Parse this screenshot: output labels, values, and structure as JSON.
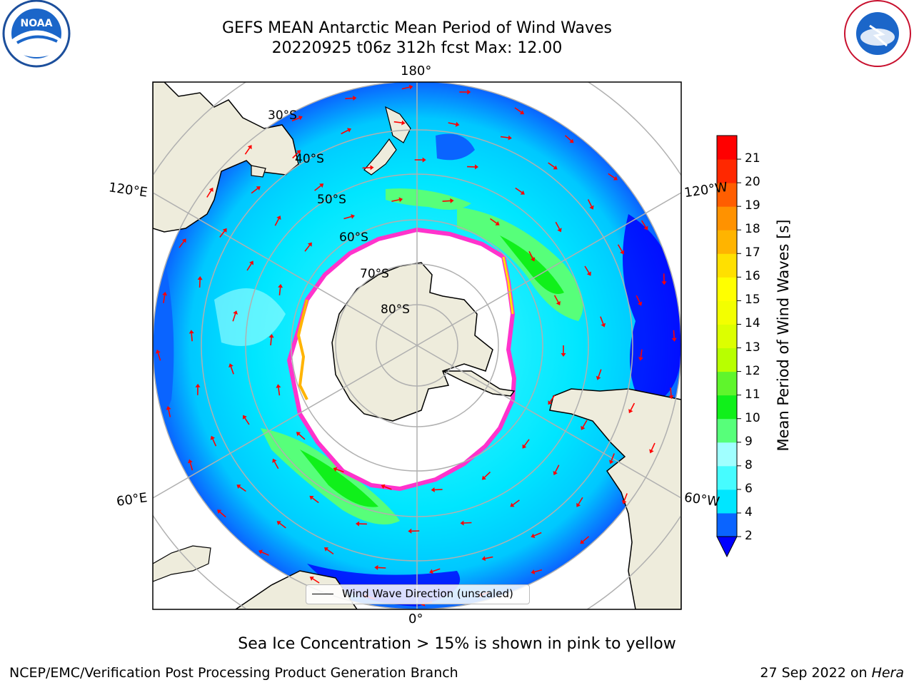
{
  "title": {
    "line1": "GEFS MEAN Antarctic Mean Period of Wind Waves",
    "line2": "20220925 t06z 312h fcst   Max: 12.00"
  },
  "logos": {
    "left": "NOAA",
    "right": "NATIONAL WEATHER SERVICE"
  },
  "map": {
    "projection": "south-polar-stereographic",
    "longitude_labels": {
      "top": "180°",
      "bottom": "0°",
      "left_upper": "120°E",
      "left_lower": "60°E",
      "right_upper": "120°W",
      "right_lower": "60°W"
    },
    "latitude_labels": [
      "30°S",
      "40°S",
      "50°S",
      "60°S",
      "70°S",
      "80°S"
    ],
    "legend": "Wind Wave Direction (unscaled)",
    "colors": {
      "land": "#eeecdc",
      "arrow": "#ff0000",
      "ice_edge": "#ff33cc",
      "ice_interior": "#ffffff"
    }
  },
  "colorbar": {
    "title": "Mean Period of Wind Waves [s]",
    "ticks": [
      "2",
      "4",
      "6",
      "8",
      "9",
      "10",
      "11",
      "12",
      "13",
      "14",
      "15",
      "16",
      "17",
      "18",
      "19",
      "20",
      "21"
    ],
    "colors": [
      "#0a64ff",
      "#00e6ff",
      "#46fcff",
      "#a0ffff",
      "#57ff7a",
      "#10f01a",
      "#5ff52c",
      "#b8ff00",
      "#dcff00",
      "#f3ff00",
      "#ffff00",
      "#ffe000",
      "#ffb400",
      "#ff9200",
      "#ff5e00",
      "#ff2800",
      "#ff0000"
    ],
    "extend_min_color": "#0000ff"
  },
  "caption": "Sea Ice Concentration > 15% is shown in pink to yellow",
  "footer": {
    "left": "NCEP/EMC/Verification Post Processing Product Generation Branch",
    "right_date": "27 Sep 2022 on",
    "right_host": "Hera"
  }
}
